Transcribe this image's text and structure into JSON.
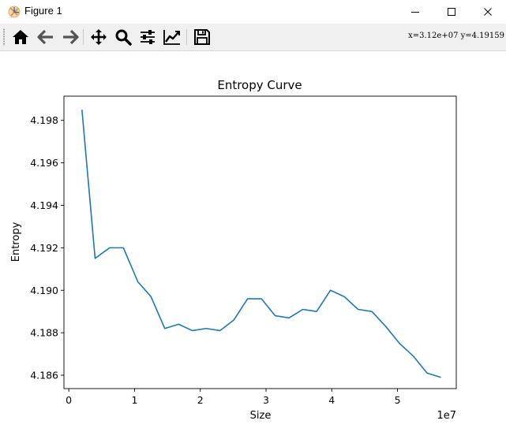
{
  "window": {
    "title": "Figure 1"
  },
  "toolbar": {
    "tools": [
      {
        "name": "home",
        "icon": "home-icon"
      },
      {
        "name": "back",
        "icon": "arrow-left-icon"
      },
      {
        "name": "forward",
        "icon": "arrow-right-icon"
      },
      {
        "name": "pan",
        "icon": "move-icon"
      },
      {
        "name": "zoom",
        "icon": "magnifier-icon"
      },
      {
        "name": "subplots",
        "icon": "sliders-icon"
      },
      {
        "name": "edit-axes",
        "icon": "line-chart-icon"
      },
      {
        "name": "save",
        "icon": "floppy-disk-icon"
      }
    ],
    "coords_text": "x=3.12e+07 y=4.19159"
  },
  "colors": {
    "line": "#1f77b4",
    "toolbar_bg": "#f0f0f0"
  },
  "chart_data": {
    "type": "line",
    "title": "Entropy Curve",
    "xlabel": "Size",
    "ylabel": "Entropy",
    "x_offset_text": "1e7",
    "xlim": [
      -0.074,
      5.894
    ],
    "ylim": [
      4.18537,
      4.19914
    ],
    "x_ticks": [
      0,
      1,
      2,
      3,
      4,
      5
    ],
    "x_tick_labels": [
      "0",
      "1",
      "2",
      "3",
      "4",
      "5"
    ],
    "y_ticks": [
      4.186,
      4.188,
      4.19,
      4.192,
      4.194,
      4.196,
      4.198
    ],
    "y_tick_labels": [
      "4.186",
      "4.188",
      "4.190",
      "4.192",
      "4.194",
      "4.196",
      "4.198"
    ],
    "grid": false,
    "series": [
      {
        "x": [
          0.2,
          0.4,
          0.62,
          0.83,
          1.05,
          1.25,
          1.46,
          1.67,
          1.88,
          2.09,
          2.3,
          2.51,
          2.72,
          2.93,
          3.14,
          3.35,
          3.56,
          3.77,
          3.98,
          4.19,
          4.4,
          4.61,
          4.82,
          5.03,
          5.24,
          5.45,
          5.66
        ],
        "y": [
          4.1985,
          4.1915,
          4.192,
          4.192,
          4.1904,
          4.1897,
          4.1882,
          4.1884,
          4.1881,
          4.1882,
          4.1881,
          4.1886,
          4.1896,
          4.1896,
          4.1888,
          4.1887,
          4.1891,
          4.189,
          4.19,
          4.1897,
          4.1891,
          4.189,
          4.1883,
          4.1875,
          4.1869,
          4.1861,
          4.1859
        ]
      }
    ]
  }
}
